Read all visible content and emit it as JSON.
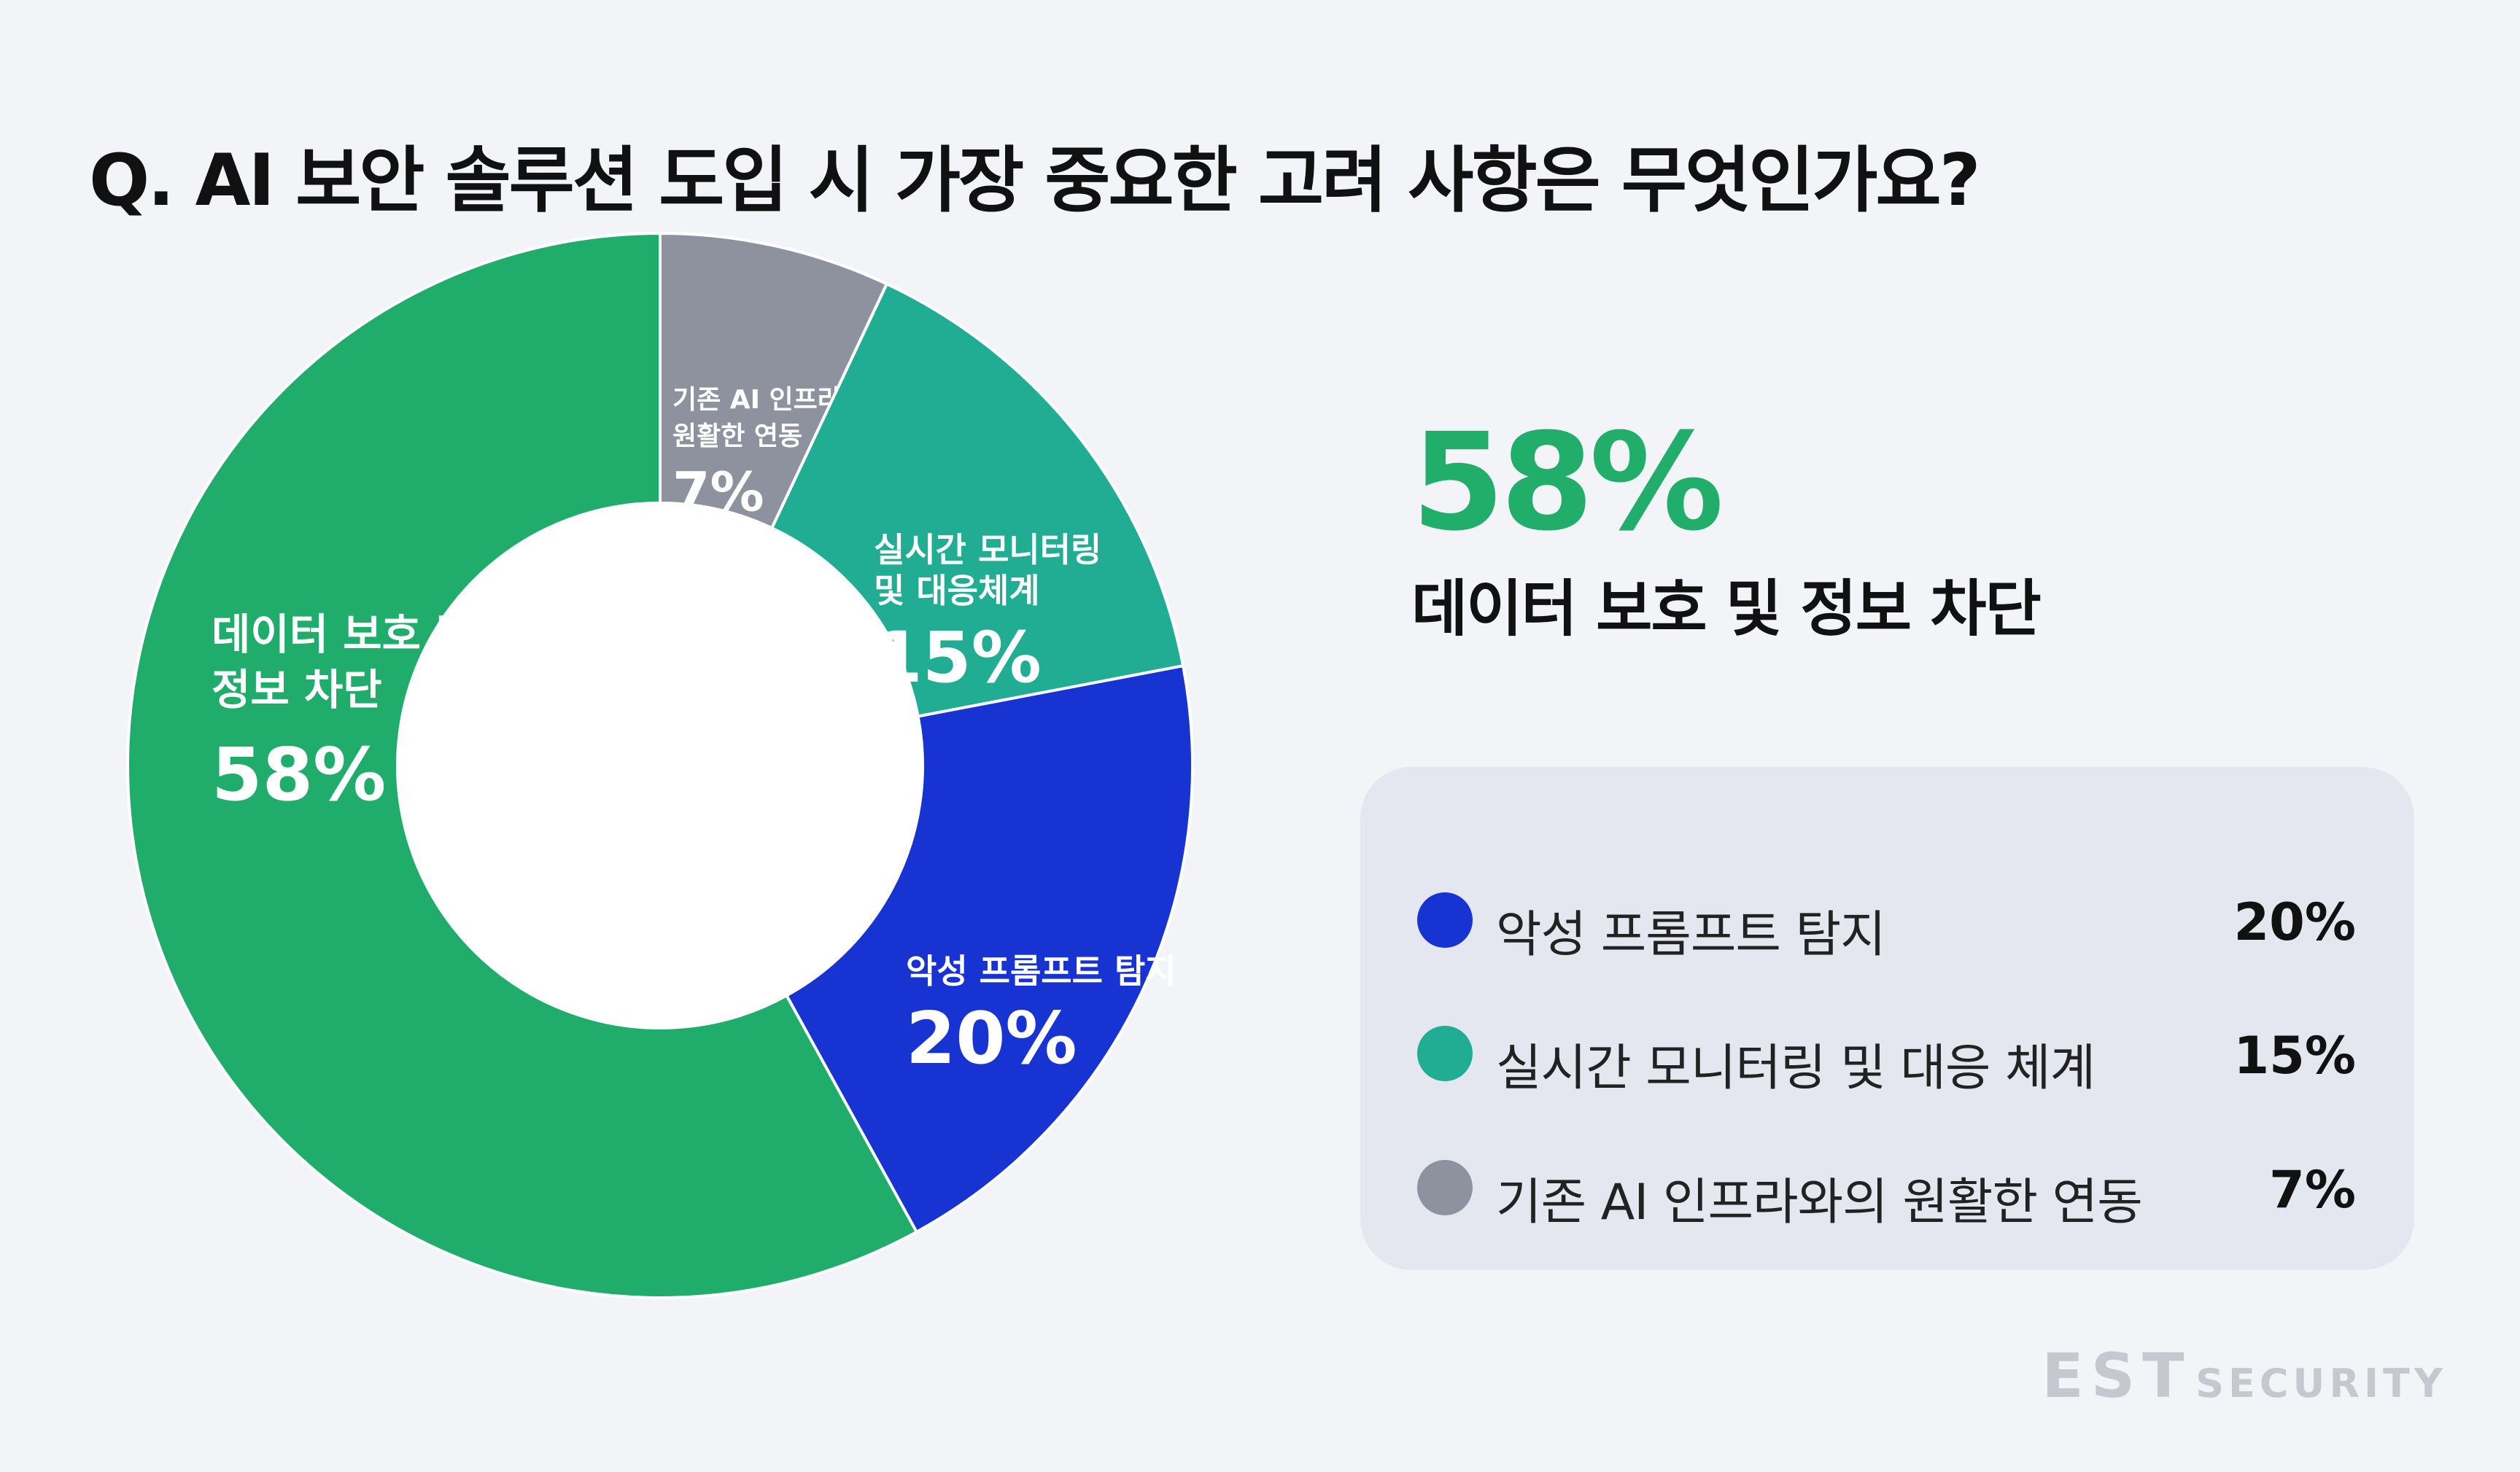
{
  "question": "Q. AI 보안 솔루션 도입 시 가장 중요한 고려 사항은 무엇인가요?",
  "headline": {
    "value": "58%",
    "label": "데이터 보호 및 정보 차단"
  },
  "legend": [
    {
      "label": "악성 프롬프트 탐지",
      "value": "20%",
      "color": "#1733d1"
    },
    {
      "label": "실시간 모니터링 및 대응 체계",
      "value": "15%",
      "color": "#20ad94"
    },
    {
      "label": "기존 AI 인프라와의 원활한 연동",
      "value": "7%",
      "color": "#8e929e"
    }
  ],
  "brand": {
    "part1": "EST",
    "part2": "SECURITY"
  },
  "chart_data": {
    "type": "pie",
    "donut": true,
    "slices": [
      {
        "label_lines": [
          "기존 AI 인프라와의",
          "원활한 연동"
        ],
        "value": 7,
        "value_label": "7%",
        "color": "#8e929e"
      },
      {
        "label_lines": [
          "실시간 모니터링",
          "및 대응체계"
        ],
        "value": 15,
        "value_label": "15%",
        "color": "#20ad94"
      },
      {
        "label_lines": [
          "악성 프롬프트 탐지"
        ],
        "value": 20,
        "value_label": "20%",
        "color": "#1733d1"
      },
      {
        "label_lines": [
          "데이터 보호 및",
          "정보 차단"
        ],
        "value": 58,
        "value_label": "58%",
        "color": "#20ad6b"
      }
    ]
  }
}
